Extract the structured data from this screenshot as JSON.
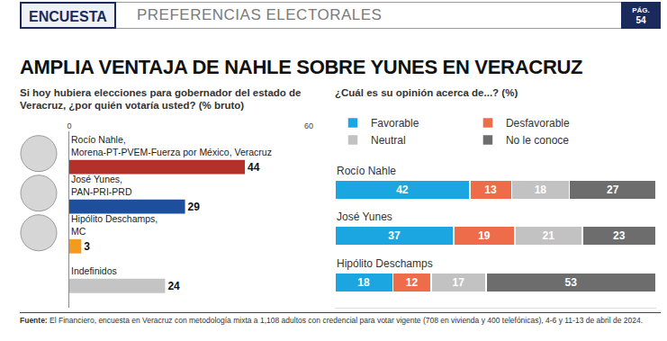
{
  "header": {
    "section": "ENCUESTA",
    "topic": "PREFERENCIAS ELECTORALES",
    "page": [
      "PÁG.",
      "54"
    ]
  },
  "title": "AMPLIA VENTAJA DE NAHLE SOBRE YUNES EN VERACRUZ",
  "chart_data": [
    {
      "type": "bar",
      "orientation": "horizontal",
      "title": "Si hoy hubiera elecciones para gobernador del estado de Veracruz, ¿por quién votaría usted? (% bruto)",
      "categories": [
        "Rocío Nahle, Morena-PT-PVEM-Fuerza por México, Veracruz",
        "José Yunes, PAN-PRI-PRD",
        "Hipólito Deschamps, MC",
        "Indefinidos"
      ],
      "values": [
        44,
        29,
        3,
        24
      ],
      "colors": [
        "#b3312b",
        "#1d4f9c",
        "#f39a1f",
        "#c4c4c4"
      ],
      "xlim": [
        0,
        60
      ],
      "xticks": [
        0,
        60
      ],
      "grid": false,
      "data_labels": true,
      "tick_labels": "x"
    },
    {
      "type": "bar",
      "orientation": "horizontal",
      "stacked": true,
      "title": "¿Cuál es su opinión acerca de...? (%)",
      "categories": [
        "Rocío Nahle",
        "José Yunes",
        "Hipólito Deschamps"
      ],
      "series": [
        {
          "name": "Favorable",
          "color": "#1ba6e2",
          "values": [
            42,
            37,
            18
          ]
        },
        {
          "name": "Desfavorable",
          "color": "#ef6c4a",
          "values": [
            13,
            19,
            12
          ]
        },
        {
          "name": "Neutral",
          "color": "#c2c2c2",
          "values": [
            18,
            21,
            17
          ]
        },
        {
          "name": "No le conoce",
          "color": "#6d6d6d",
          "values": [
            27,
            23,
            53
          ]
        }
      ],
      "xlim": [
        0,
        100
      ],
      "xticks": [],
      "grid": false,
      "data_labels": true,
      "tick_labels": false,
      "legend": "top left"
    }
  ],
  "source": {
    "label": "Fuente:",
    "text": "El Financiero, encuesta en Veracruz con metodología mixta a 1,108 adultos con credencial para votar vigente (708 en vivienda y 400 telefónicas), 4-6 y 11-13 de abril de 2024."
  }
}
